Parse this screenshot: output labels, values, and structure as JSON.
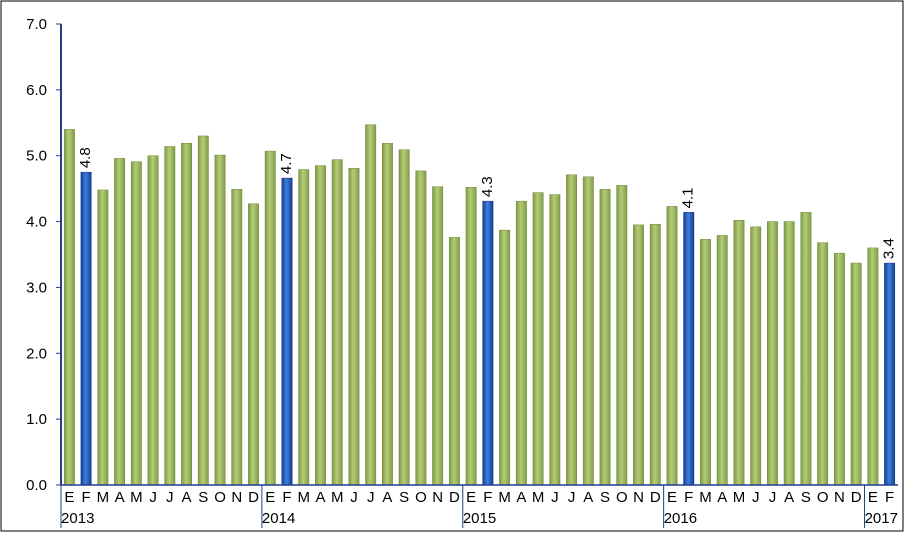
{
  "chart_data": {
    "type": "bar",
    "title": "",
    "xlabel": "",
    "ylabel": "",
    "ylim": [
      0,
      7
    ],
    "yticks": [
      "0.0",
      "1.0",
      "2.0",
      "3.0",
      "4.0",
      "5.0",
      "6.0",
      "7.0"
    ],
    "grid": false,
    "legend": "none",
    "colors": {
      "regular": "#9bbb59",
      "highlight": "#1f5fbf",
      "axis": "#1f3f8f"
    },
    "month_labels": [
      "E",
      "F",
      "M",
      "A",
      "M",
      "J",
      "J",
      "A",
      "S",
      "O",
      "N",
      "D",
      "E",
      "F",
      "M",
      "A",
      "M",
      "J",
      "J",
      "A",
      "S",
      "O",
      "N",
      "D",
      "E",
      "F",
      "M",
      "A",
      "M",
      "J",
      "J",
      "A",
      "S",
      "O",
      "N",
      "D",
      "E",
      "F",
      "M",
      "A",
      "M",
      "J",
      "J",
      "A",
      "S",
      "O",
      "N",
      "D",
      "E",
      "F"
    ],
    "years": [
      {
        "label": "2013",
        "start": 0
      },
      {
        "label": "2014",
        "start": 12
      },
      {
        "label": "2015",
        "start": 24
      },
      {
        "label": "2016",
        "start": 36
      },
      {
        "label": "2017",
        "start": 48
      }
    ],
    "values": [
      5.4,
      4.75,
      4.48,
      4.96,
      4.91,
      5.0,
      5.14,
      5.19,
      5.3,
      5.01,
      4.49,
      4.27,
      5.07,
      4.66,
      4.79,
      4.85,
      4.94,
      4.81,
      5.47,
      5.19,
      5.09,
      4.77,
      4.53,
      3.76,
      4.52,
      4.31,
      3.87,
      4.31,
      4.44,
      4.41,
      4.71,
      4.68,
      4.49,
      4.55,
      3.95,
      3.96,
      4.23,
      4.14,
      3.73,
      3.79,
      4.02,
      3.92,
      4.0,
      4.0,
      4.14,
      3.68,
      3.52,
      3.37,
      3.6,
      3.37
    ],
    "highlighted": [
      {
        "index": 1,
        "label": "4.8"
      },
      {
        "index": 13,
        "label": "4.7"
      },
      {
        "index": 25,
        "label": "4.3"
      },
      {
        "index": 37,
        "label": "4.1"
      },
      {
        "index": 49,
        "label": "3.4"
      }
    ]
  }
}
